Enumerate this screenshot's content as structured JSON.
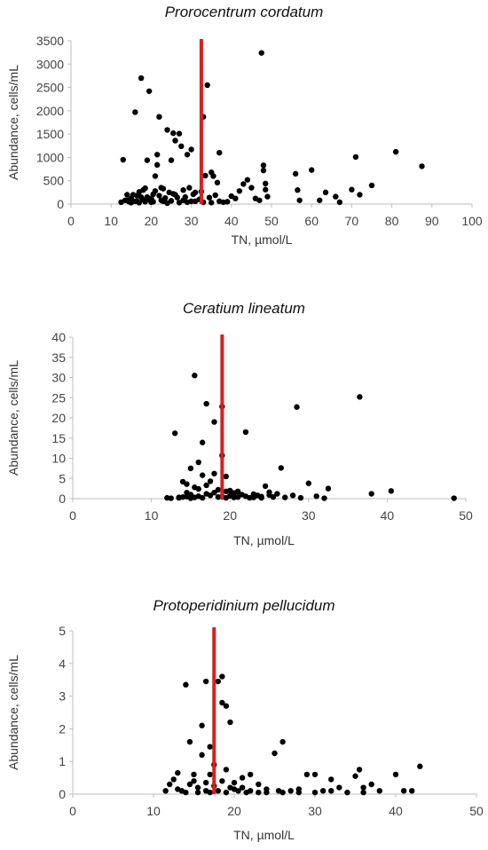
{
  "chart_data": [
    {
      "type": "scatter",
      "title": "Prorocentrum cordatum",
      "xlabel": "TN, µmol/L",
      "ylabel": "Abundance, cells/mL",
      "xlim": [
        0,
        100
      ],
      "ylim": [
        0,
        3500
      ],
      "xticks": [
        0,
        10,
        20,
        30,
        40,
        50,
        60,
        70,
        80,
        90,
        100
      ],
      "yticks": [
        0,
        500,
        1000,
        1500,
        2000,
        2500,
        3000,
        3500
      ],
      "threshold_x": 32.5,
      "threshold_color": "#d62020",
      "marker_color": "#000000",
      "points": [
        [
          12.5,
          40
        ],
        [
          13,
          950
        ],
        [
          14,
          80
        ],
        [
          15,
          120
        ],
        [
          15.5,
          200
        ],
        [
          16,
          1970
        ],
        [
          16.5,
          60
        ],
        [
          17,
          260
        ],
        [
          17.5,
          150
        ],
        [
          17.5,
          2700
        ],
        [
          18,
          90
        ],
        [
          18.5,
          340
        ],
        [
          19,
          940
        ],
        [
          19.5,
          2420
        ],
        [
          20,
          120
        ],
        [
          20.5,
          210
        ],
        [
          21,
          600
        ],
        [
          21.5,
          1060
        ],
        [
          21.5,
          840
        ],
        [
          22,
          1870
        ],
        [
          22.5,
          80
        ],
        [
          23,
          330
        ],
        [
          24,
          1590
        ],
        [
          24.5,
          250
        ],
        [
          25,
          940
        ],
        [
          25.5,
          1520
        ],
        [
          26,
          1360
        ],
        [
          26.5,
          140
        ],
        [
          27,
          1510
        ],
        [
          27.5,
          1240
        ],
        [
          28,
          300
        ],
        [
          28.5,
          150
        ],
        [
          29,
          1060
        ],
        [
          29.5,
          350
        ],
        [
          30,
          1170
        ],
        [
          30.5,
          210
        ],
        [
          31,
          60
        ],
        [
          32,
          100
        ],
        [
          32.5,
          270
        ],
        [
          33,
          1870
        ],
        [
          33.5,
          610
        ],
        [
          34,
          2550
        ],
        [
          34.5,
          140
        ],
        [
          35,
          680
        ],
        [
          35.5,
          600
        ],
        [
          36,
          190
        ],
        [
          36.5,
          460
        ],
        [
          37,
          1100
        ],
        [
          38,
          40
        ],
        [
          39,
          50
        ],
        [
          40,
          170
        ],
        [
          41,
          120
        ],
        [
          42,
          280
        ],
        [
          43,
          430
        ],
        [
          44,
          520
        ],
        [
          45,
          350
        ],
        [
          46,
          120
        ],
        [
          47,
          80
        ],
        [
          47.5,
          3240
        ],
        [
          48,
          830
        ],
        [
          48,
          720
        ],
        [
          48.5,
          440
        ],
        [
          48.5,
          310
        ],
        [
          49,
          160
        ],
        [
          56,
          650
        ],
        [
          56.5,
          300
        ],
        [
          57,
          80
        ],
        [
          60,
          730
        ],
        [
          62,
          80
        ],
        [
          63.5,
          250
        ],
        [
          66,
          160
        ],
        [
          67,
          40
        ],
        [
          70,
          310
        ],
        [
          71,
          1010
        ],
        [
          72,
          200
        ],
        [
          75,
          400
        ],
        [
          81,
          1120
        ],
        [
          87.5,
          810
        ],
        [
          14,
          200
        ],
        [
          16,
          60
        ],
        [
          17,
          30
        ],
        [
          18.5,
          50
        ],
        [
          19,
          150
        ],
        [
          20,
          40
        ],
        [
          21,
          280
        ],
        [
          22,
          180
        ],
        [
          23,
          60
        ],
        [
          24,
          20
        ],
        [
          25,
          70
        ],
        [
          26,
          200
        ],
        [
          27,
          30
        ],
        [
          28,
          80
        ],
        [
          29,
          40
        ],
        [
          30,
          60
        ],
        [
          31,
          250
        ],
        [
          33,
          40
        ],
        [
          35,
          30
        ],
        [
          37,
          60
        ],
        [
          13.5,
          80
        ],
        [
          14.5,
          50
        ],
        [
          15,
          30
        ],
        [
          16.5,
          180
        ],
        [
          18,
          300
        ],
        [
          19.5,
          100
        ],
        [
          20.5,
          50
        ],
        [
          22.5,
          350
        ],
        [
          23.5,
          130
        ],
        [
          25.5,
          220
        ]
      ]
    },
    {
      "type": "scatter",
      "title": "Ceratium lineatum",
      "xlabel": "TN, µmol/L",
      "ylabel": "Abundance, cells/mL",
      "xlim": [
        0,
        50
      ],
      "ylim": [
        0,
        40
      ],
      "xticks": [
        0,
        10,
        20,
        30,
        40,
        50
      ],
      "yticks": [
        0,
        5,
        10,
        15,
        20,
        25,
        30,
        35,
        40
      ],
      "threshold_x": 19,
      "threshold_color": "#d62020",
      "marker_color": "#000000",
      "points": [
        [
          12,
          0.2
        ],
        [
          12.5,
          0.1
        ],
        [
          13,
          16.2
        ],
        [
          13.5,
          0.3
        ],
        [
          14,
          4.2
        ],
        [
          14.5,
          0.5
        ],
        [
          14.5,
          3.6
        ],
        [
          15,
          1.0
        ],
        [
          15,
          7.5
        ],
        [
          15.5,
          30.5
        ],
        [
          15.5,
          0.3
        ],
        [
          16,
          9.0
        ],
        [
          16,
          2.4
        ],
        [
          16.5,
          13.9
        ],
        [
          16.5,
          5.8
        ],
        [
          17,
          23.5
        ],
        [
          17,
          1.2
        ],
        [
          17.5,
          4.3
        ],
        [
          18,
          19.0
        ],
        [
          18,
          6.2
        ],
        [
          18.5,
          0.4
        ],
        [
          19,
          22.8
        ],
        [
          19,
          10.7
        ],
        [
          19.5,
          5.5
        ],
        [
          19.5,
          1.8
        ],
        [
          20,
          0.7
        ],
        [
          20.5,
          1.4
        ],
        [
          21,
          0.4
        ],
        [
          21.5,
          1.0
        ],
        [
          22,
          16.5
        ],
        [
          22.5,
          0.2
        ],
        [
          23,
          0.3
        ],
        [
          23.5,
          0.8
        ],
        [
          24,
          0.5
        ],
        [
          24.5,
          3.1
        ],
        [
          25,
          0.9
        ],
        [
          25.5,
          0.4
        ],
        [
          26,
          1.2
        ],
        [
          26.5,
          7.6
        ],
        [
          27,
          0.3
        ],
        [
          28,
          0.8
        ],
        [
          28.5,
          22.7
        ],
        [
          29,
          0.2
        ],
        [
          30,
          3.8
        ],
        [
          31,
          0.6
        ],
        [
          32,
          0.1
        ],
        [
          32.5,
          2.5
        ],
        [
          36.5,
          25.2
        ],
        [
          38,
          1.2
        ],
        [
          40.5,
          1.9
        ],
        [
          48.5,
          0.1
        ],
        [
          13.5,
          0.2
        ],
        [
          14,
          0.4
        ],
        [
          14.5,
          1.5
        ],
        [
          15,
          0.1
        ],
        [
          15.5,
          2.8
        ],
        [
          16,
          0.6
        ],
        [
          16.5,
          0.2
        ],
        [
          17,
          3.3
        ],
        [
          17.5,
          0.8
        ],
        [
          18,
          1.5
        ],
        [
          18.5,
          2.2
        ],
        [
          19,
          0.5
        ],
        [
          19.5,
          0.2
        ],
        [
          20,
          2.0
        ],
        [
          20.5,
          0.3
        ],
        [
          21,
          1.8
        ],
        [
          22,
          0.6
        ],
        [
          23,
          1.1
        ],
        [
          24,
          0.2
        ],
        [
          25,
          1.6
        ]
      ]
    },
    {
      "type": "scatter",
      "title": "Protoperidinium pellucidum",
      "xlabel": "TN, µmol/L",
      "ylabel": "Abundance, cells/mL",
      "xlim": [
        0,
        50
      ],
      "ylim": [
        0,
        5
      ],
      "xticks": [
        0,
        10,
        20,
        30,
        40,
        50
      ],
      "yticks": [
        0,
        1,
        2,
        3,
        4,
        5
      ],
      "threshold_x": 17.5,
      "threshold_color": "#d62020",
      "marker_color": "#000000",
      "points": [
        [
          11.5,
          0.1
        ],
        [
          12,
          0.3
        ],
        [
          12.5,
          0.45
        ],
        [
          13,
          0.65
        ],
        [
          13.5,
          0.1
        ],
        [
          14,
          3.35
        ],
        [
          14.5,
          1.6
        ],
        [
          15,
          0.4
        ],
        [
          15,
          0.6
        ],
        [
          15.5,
          0.2
        ],
        [
          16,
          1.2
        ],
        [
          16,
          2.1
        ],
        [
          16.5,
          3.45
        ],
        [
          16.5,
          0.35
        ],
        [
          17,
          0.6
        ],
        [
          17,
          1.45
        ],
        [
          17.5,
          0.9
        ],
        [
          17.5,
          0.25
        ],
        [
          18,
          3.45
        ],
        [
          18.5,
          3.6
        ],
        [
          18.5,
          2.8
        ],
        [
          19,
          2.7
        ],
        [
          19,
          0.75
        ],
        [
          19.5,
          0.2
        ],
        [
          19.5,
          2.2
        ],
        [
          20,
          0.35
        ],
        [
          20.5,
          0.1
        ],
        [
          21,
          0.5
        ],
        [
          21.5,
          0.05
        ],
        [
          22,
          0.6
        ],
        [
          23,
          0.3
        ],
        [
          24,
          0.15
        ],
        [
          25,
          1.25
        ],
        [
          25.5,
          0.1
        ],
        [
          26,
          1.6
        ],
        [
          27,
          0.1
        ],
        [
          28,
          0.15
        ],
        [
          29,
          0.6
        ],
        [
          30,
          0.6
        ],
        [
          31,
          0.1
        ],
        [
          32,
          0.45
        ],
        [
          33,
          0.2
        ],
        [
          35,
          0.55
        ],
        [
          35.5,
          0.75
        ],
        [
          36,
          0.2
        ],
        [
          37,
          0.3
        ],
        [
          38,
          0.1
        ],
        [
          40,
          0.6
        ],
        [
          41,
          0.1
        ],
        [
          42,
          0.1
        ],
        [
          43,
          0.85
        ],
        [
          13,
          0.15
        ],
        [
          14,
          0.05
        ],
        [
          14.5,
          0.3
        ],
        [
          15.5,
          0.05
        ],
        [
          16.5,
          0.1
        ],
        [
          17,
          0.05
        ],
        [
          18,
          0.1
        ],
        [
          18.5,
          0.4
        ],
        [
          19,
          0.05
        ],
        [
          20,
          0.15
        ],
        [
          21,
          0.2
        ],
        [
          22,
          0.1
        ],
        [
          23,
          0.05
        ],
        [
          24,
          0.05
        ],
        [
          26,
          0.05
        ],
        [
          28,
          0.05
        ],
        [
          30,
          0.05
        ],
        [
          32,
          0.1
        ],
        [
          34,
          0.05
        ],
        [
          36,
          0.05
        ]
      ]
    }
  ]
}
